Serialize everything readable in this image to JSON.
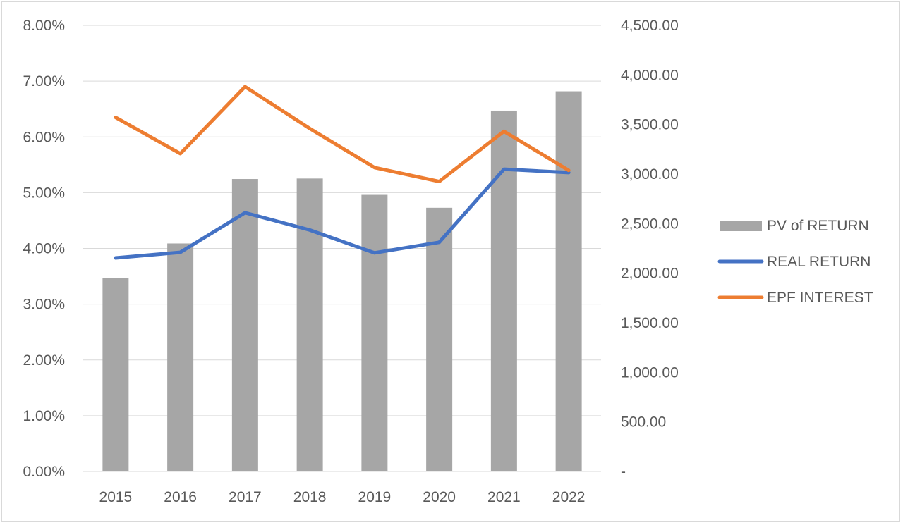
{
  "chart_data": {
    "type": "bar",
    "title": "",
    "categories": [
      "2015",
      "2016",
      "2017",
      "2018",
      "2019",
      "2020",
      "2021",
      "2022"
    ],
    "series": [
      {
        "name": "PV of RETURN",
        "type": "bar",
        "axis": "right",
        "color": "#a6a6a6",
        "values": [
          1950,
          2300,
          2950,
          2955,
          2790,
          2660,
          3640,
          3835
        ]
      },
      {
        "name": "REAL RETURN",
        "type": "line",
        "axis": "left",
        "color": "#4472c4",
        "values": [
          0.0383,
          0.0393,
          0.0464,
          0.0433,
          0.0392,
          0.0411,
          0.0542,
          0.0536
        ]
      },
      {
        "name": "EPF INTEREST",
        "type": "line",
        "axis": "left",
        "color": "#ed7d31",
        "values": [
          0.0635,
          0.057,
          0.069,
          0.0615,
          0.0545,
          0.052,
          0.061,
          0.054
        ]
      }
    ],
    "left_axis": {
      "min": 0,
      "max": 0.08,
      "ticks": [
        "0.00%",
        "1.00%",
        "2.00%",
        "3.00%",
        "4.00%",
        "5.00%",
        "6.00%",
        "7.00%",
        "8.00%"
      ]
    },
    "right_axis": {
      "min": 0,
      "max": 4500,
      "ticks": [
        "-",
        "500.00",
        "1,000.00",
        "1,500.00",
        "2,000.00",
        "2,500.00",
        "3,000.00",
        "3,500.00",
        "4,000.00",
        "4,500.00"
      ]
    },
    "grid": true,
    "legend_position": "right"
  }
}
